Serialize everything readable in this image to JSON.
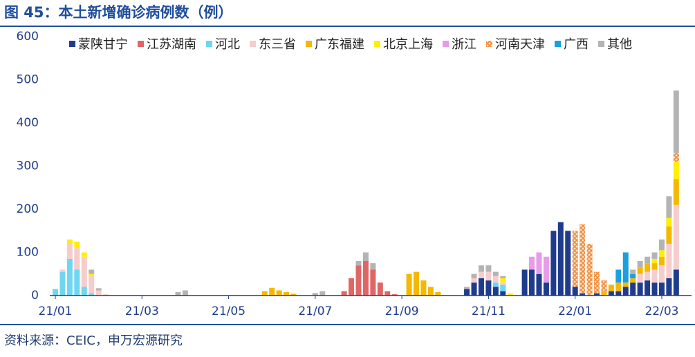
{
  "chart_data": {
    "type": "stacked-bar",
    "title": "图 45：本土新增确诊病例数（例）",
    "source": "资料来源：CEIC，申万宏源研究",
    "categories": [
      "21/01",
      null,
      null,
      null,
      null,
      null,
      null,
      null,
      null,
      null,
      null,
      null,
      "21/03",
      null,
      null,
      null,
      null,
      null,
      null,
      null,
      null,
      null,
      null,
      null,
      "21/05",
      null,
      null,
      null,
      null,
      null,
      null,
      null,
      null,
      null,
      null,
      null,
      "21/07",
      null,
      null,
      null,
      null,
      null,
      null,
      null,
      null,
      null,
      null,
      null,
      "21/09",
      null,
      null,
      null,
      null,
      null,
      null,
      null,
      null,
      null,
      null,
      null,
      "21/11",
      null,
      null,
      null,
      null,
      null,
      null,
      null,
      null,
      null,
      null,
      null,
      "22/01",
      null,
      null,
      null,
      null,
      null,
      null,
      null,
      null,
      null,
      null,
      null,
      "22/03",
      null,
      null
    ],
    "ylim": [
      0,
      600
    ],
    "yticks": [
      0,
      100,
      200,
      300,
      400,
      500,
      600
    ],
    "grid": false,
    "legend": "top",
    "series": [
      {
        "name": "蒙陕甘宁",
        "color": "#1f3c8c",
        "values": [
          0,
          0,
          0,
          0,
          0,
          0,
          0,
          0,
          0,
          0,
          0,
          0,
          0,
          0,
          0,
          0,
          0,
          0,
          0,
          0,
          0,
          0,
          0,
          0,
          0,
          0,
          0,
          0,
          0,
          0,
          0,
          0,
          0,
          0,
          0,
          0,
          0,
          0,
          0,
          0,
          0,
          0,
          0,
          0,
          0,
          0,
          0,
          0,
          0,
          0,
          0,
          0,
          0,
          0,
          0,
          0,
          0,
          15,
          30,
          40,
          35,
          20,
          10,
          0,
          0,
          60,
          60,
          50,
          30,
          150,
          170,
          150,
          20,
          5,
          0,
          5,
          0,
          10,
          10,
          20,
          30,
          30,
          35,
          30,
          30,
          40,
          60
        ]
      },
      {
        "name": "江苏湖南",
        "color": "#e06666",
        "values": [
          0,
          0,
          0,
          0,
          0,
          0,
          0,
          0,
          0,
          0,
          0,
          0,
          0,
          0,
          0,
          0,
          0,
          0,
          0,
          0,
          0,
          0,
          0,
          0,
          0,
          0,
          0,
          0,
          0,
          0,
          0,
          0,
          0,
          0,
          0,
          0,
          0,
          0,
          0,
          0,
          10,
          40,
          70,
          80,
          60,
          30,
          10,
          3,
          0,
          0,
          0,
          0,
          0,
          0,
          0,
          0,
          0,
          0,
          0,
          0,
          0,
          0,
          0,
          0,
          0,
          0,
          0,
          0,
          0,
          0,
          0,
          0,
          0,
          0,
          0,
          0,
          0,
          0,
          0,
          0,
          0,
          0,
          0,
          0,
          0,
          0,
          0
        ]
      },
      {
        "name": "河北",
        "color": "#6fd6f2",
        "values": [
          15,
          55,
          85,
          60,
          20,
          5,
          0,
          0,
          0,
          0,
          0,
          0,
          0,
          0,
          0,
          0,
          0,
          0,
          0,
          0,
          0,
          0,
          0,
          0,
          0,
          0,
          0,
          0,
          0,
          0,
          0,
          0,
          0,
          0,
          0,
          0,
          0,
          0,
          0,
          0,
          0,
          0,
          0,
          0,
          0,
          0,
          0,
          0,
          0,
          0,
          0,
          0,
          0,
          0,
          0,
          0,
          0,
          0,
          0,
          0,
          0,
          10,
          15,
          0,
          0,
          0,
          0,
          0,
          0,
          0,
          0,
          0,
          0,
          0,
          0,
          0,
          0,
          0,
          0,
          0,
          0,
          0,
          0,
          0,
          0,
          0,
          0
        ]
      },
      {
        "name": "东三省",
        "color": "#f6cccc",
        "values": [
          0,
          5,
          35,
          50,
          70,
          40,
          12,
          3,
          0,
          0,
          0,
          0,
          0,
          0,
          0,
          0,
          0,
          0,
          0,
          0,
          0,
          0,
          0,
          0,
          0,
          0,
          0,
          0,
          0,
          0,
          0,
          0,
          0,
          0,
          0,
          0,
          0,
          0,
          0,
          0,
          0,
          0,
          0,
          0,
          0,
          0,
          0,
          0,
          0,
          0,
          0,
          0,
          0,
          0,
          0,
          0,
          0,
          0,
          10,
          15,
          20,
          15,
          5,
          0,
          0,
          0,
          0,
          0,
          0,
          0,
          0,
          0,
          0,
          0,
          0,
          0,
          0,
          0,
          0,
          0,
          0,
          20,
          20,
          30,
          40,
          80,
          150
        ]
      },
      {
        "name": "广东福建",
        "color": "#f5b800",
        "values": [
          0,
          0,
          0,
          0,
          0,
          0,
          0,
          0,
          0,
          0,
          0,
          0,
          0,
          0,
          0,
          0,
          0,
          0,
          0,
          0,
          0,
          0,
          0,
          0,
          0,
          0,
          0,
          0,
          0,
          10,
          18,
          12,
          8,
          4,
          0,
          0,
          0,
          0,
          0,
          0,
          0,
          0,
          0,
          0,
          0,
          0,
          0,
          0,
          0,
          50,
          55,
          35,
          20,
          8,
          0,
          0,
          0,
          0,
          0,
          0,
          0,
          0,
          0,
          0,
          0,
          0,
          0,
          0,
          0,
          0,
          0,
          0,
          0,
          0,
          0,
          0,
          10,
          15,
          20,
          10,
          10,
          15,
          20,
          15,
          20,
          40,
          60
        ]
      },
      {
        "name": "北京上海",
        "color": "#fff000",
        "values": [
          0,
          0,
          10,
          15,
          10,
          5,
          0,
          0,
          0,
          0,
          0,
          0,
          0,
          0,
          0,
          0,
          0,
          0,
          0,
          0,
          0,
          0,
          0,
          0,
          0,
          0,
          0,
          0,
          0,
          0,
          0,
          0,
          0,
          0,
          0,
          0,
          0,
          0,
          0,
          0,
          0,
          0,
          0,
          0,
          0,
          0,
          0,
          0,
          0,
          0,
          0,
          0,
          0,
          0,
          0,
          0,
          0,
          0,
          0,
          0,
          0,
          0,
          10,
          5,
          0,
          0,
          0,
          0,
          0,
          0,
          0,
          0,
          0,
          0,
          0,
          0,
          0,
          0,
          0,
          0,
          0,
          0,
          0,
          10,
          15,
          20,
          40
        ]
      },
      {
        "name": "浙江",
        "color": "#e79be9",
        "values": [
          0,
          0,
          0,
          0,
          0,
          0,
          0,
          0,
          0,
          0,
          0,
          0,
          0,
          0,
          0,
          0,
          0,
          0,
          0,
          0,
          0,
          0,
          0,
          0,
          0,
          0,
          0,
          0,
          0,
          0,
          0,
          0,
          0,
          0,
          0,
          0,
          0,
          0,
          0,
          0,
          0,
          0,
          0,
          0,
          0,
          0,
          0,
          0,
          0,
          0,
          0,
          0,
          0,
          0,
          0,
          0,
          0,
          0,
          0,
          0,
          0,
          0,
          0,
          0,
          0,
          0,
          30,
          50,
          60,
          0,
          0,
          0,
          0,
          0,
          0,
          0,
          0,
          0,
          0,
          0,
          0,
          0,
          0,
          0,
          0,
          0,
          0
        ]
      },
      {
        "name": "河南天津",
        "color": "#f08c3c",
        "hatch": true,
        "values": [
          0,
          0,
          0,
          0,
          0,
          0,
          0,
          0,
          0,
          0,
          0,
          0,
          0,
          0,
          0,
          0,
          0,
          0,
          0,
          0,
          0,
          0,
          0,
          0,
          0,
          0,
          0,
          0,
          0,
          0,
          0,
          0,
          0,
          0,
          0,
          0,
          0,
          0,
          0,
          0,
          0,
          0,
          0,
          0,
          0,
          0,
          0,
          0,
          0,
          0,
          0,
          0,
          0,
          0,
          0,
          0,
          0,
          0,
          0,
          0,
          0,
          0,
          0,
          0,
          0,
          0,
          0,
          0,
          0,
          0,
          0,
          0,
          130,
          160,
          120,
          50,
          25,
          0,
          0,
          0,
          0,
          0,
          0,
          0,
          0,
          0,
          20
        ]
      },
      {
        "name": "广西",
        "color": "#1aa0e0",
        "values": [
          0,
          0,
          0,
          0,
          0,
          0,
          0,
          0,
          0,
          0,
          0,
          0,
          0,
          0,
          0,
          0,
          0,
          0,
          0,
          0,
          0,
          0,
          0,
          0,
          0,
          0,
          0,
          0,
          0,
          0,
          0,
          0,
          0,
          0,
          0,
          0,
          0,
          0,
          0,
          0,
          0,
          0,
          0,
          0,
          0,
          0,
          0,
          0,
          0,
          0,
          0,
          0,
          0,
          0,
          0,
          0,
          0,
          0,
          0,
          0,
          0,
          0,
          0,
          0,
          0,
          0,
          0,
          0,
          0,
          0,
          0,
          0,
          0,
          0,
          0,
          0,
          0,
          0,
          30,
          70,
          10,
          0,
          0,
          0,
          0,
          0,
          0
        ]
      },
      {
        "name": "其他",
        "color": "#b4b4b4",
        "values": [
          0,
          0,
          0,
          0,
          0,
          10,
          5,
          0,
          0,
          0,
          0,
          0,
          0,
          0,
          0,
          0,
          0,
          8,
          12,
          0,
          0,
          0,
          0,
          0,
          0,
          0,
          0,
          0,
          0,
          0,
          0,
          0,
          0,
          0,
          0,
          0,
          6,
          10,
          0,
          0,
          0,
          0,
          10,
          20,
          15,
          0,
          0,
          0,
          0,
          0,
          0,
          0,
          0,
          0,
          0,
          0,
          0,
          5,
          10,
          15,
          15,
          10,
          5,
          0,
          0,
          0,
          0,
          0,
          0,
          0,
          0,
          0,
          0,
          0,
          0,
          0,
          0,
          0,
          0,
          0,
          10,
          15,
          15,
          15,
          25,
          50,
          145
        ]
      }
    ]
  }
}
